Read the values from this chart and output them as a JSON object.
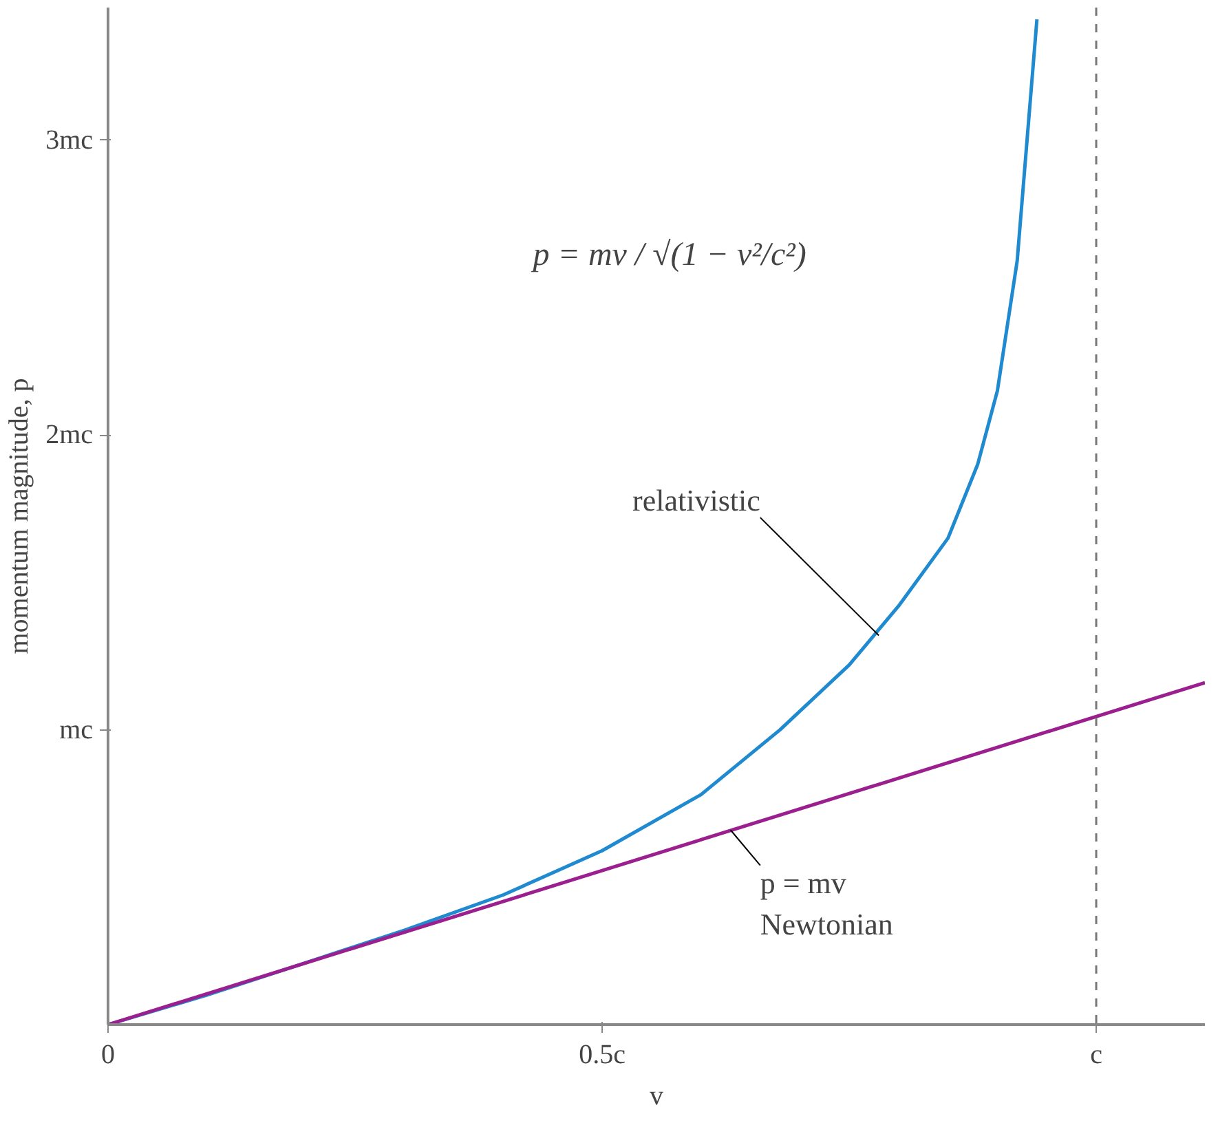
{
  "chart_data": {
    "type": "line",
    "ylabel": "momentum magnitude, p",
    "xlabel": "v",
    "xlim": [
      0,
      1.11
    ],
    "ylim": [
      0,
      3.45
    ],
    "xticks": [
      0,
      {
        "value": 0.5,
        "label": "0.5c"
      },
      {
        "value": 1,
        "label": "c"
      }
    ],
    "yticks": [
      {
        "value": 1,
        "label": "mc"
      },
      {
        "value": 2,
        "label": "2mc"
      },
      {
        "value": 3,
        "label": "3mc"
      }
    ],
    "grid": false,
    "marker": "none",
    "line_style": "solid",
    "series": [
      {
        "color": "#1f8ad0",
        "x": [
          0,
          0.1,
          0.2,
          0.3,
          0.4,
          0.5,
          0.6,
          0.68,
          0.75,
          0.8,
          0.85,
          0.88,
          0.9,
          0.92,
          0.93,
          0.94
        ],
        "values": [
          0,
          0.1,
          0.21,
          0.32,
          0.44,
          0.59,
          0.78,
          1.0,
          1.22,
          1.42,
          1.65,
          1.9,
          2.15,
          2.59,
          3.0,
          3.41
        ]
      },
      {
        "color": "#9b1f8f",
        "x": [
          0,
          1.11
        ],
        "values": [
          0,
          1.16
        ]
      }
    ],
    "ref_lines": [
      {
        "axis": "x",
        "value": 1,
        "color": "#777777",
        "line_style": "dashed"
      }
    ],
    "annotations": [
      "p = mv / √(1 − v²/c²)",
      {
        "text": "relativistic",
        "x": 0.78,
        "y": 1.32
      },
      {
        "text": "p = mv\nNewtonian",
        "x": 0.63,
        "y": 0.66
      }
    ]
  }
}
